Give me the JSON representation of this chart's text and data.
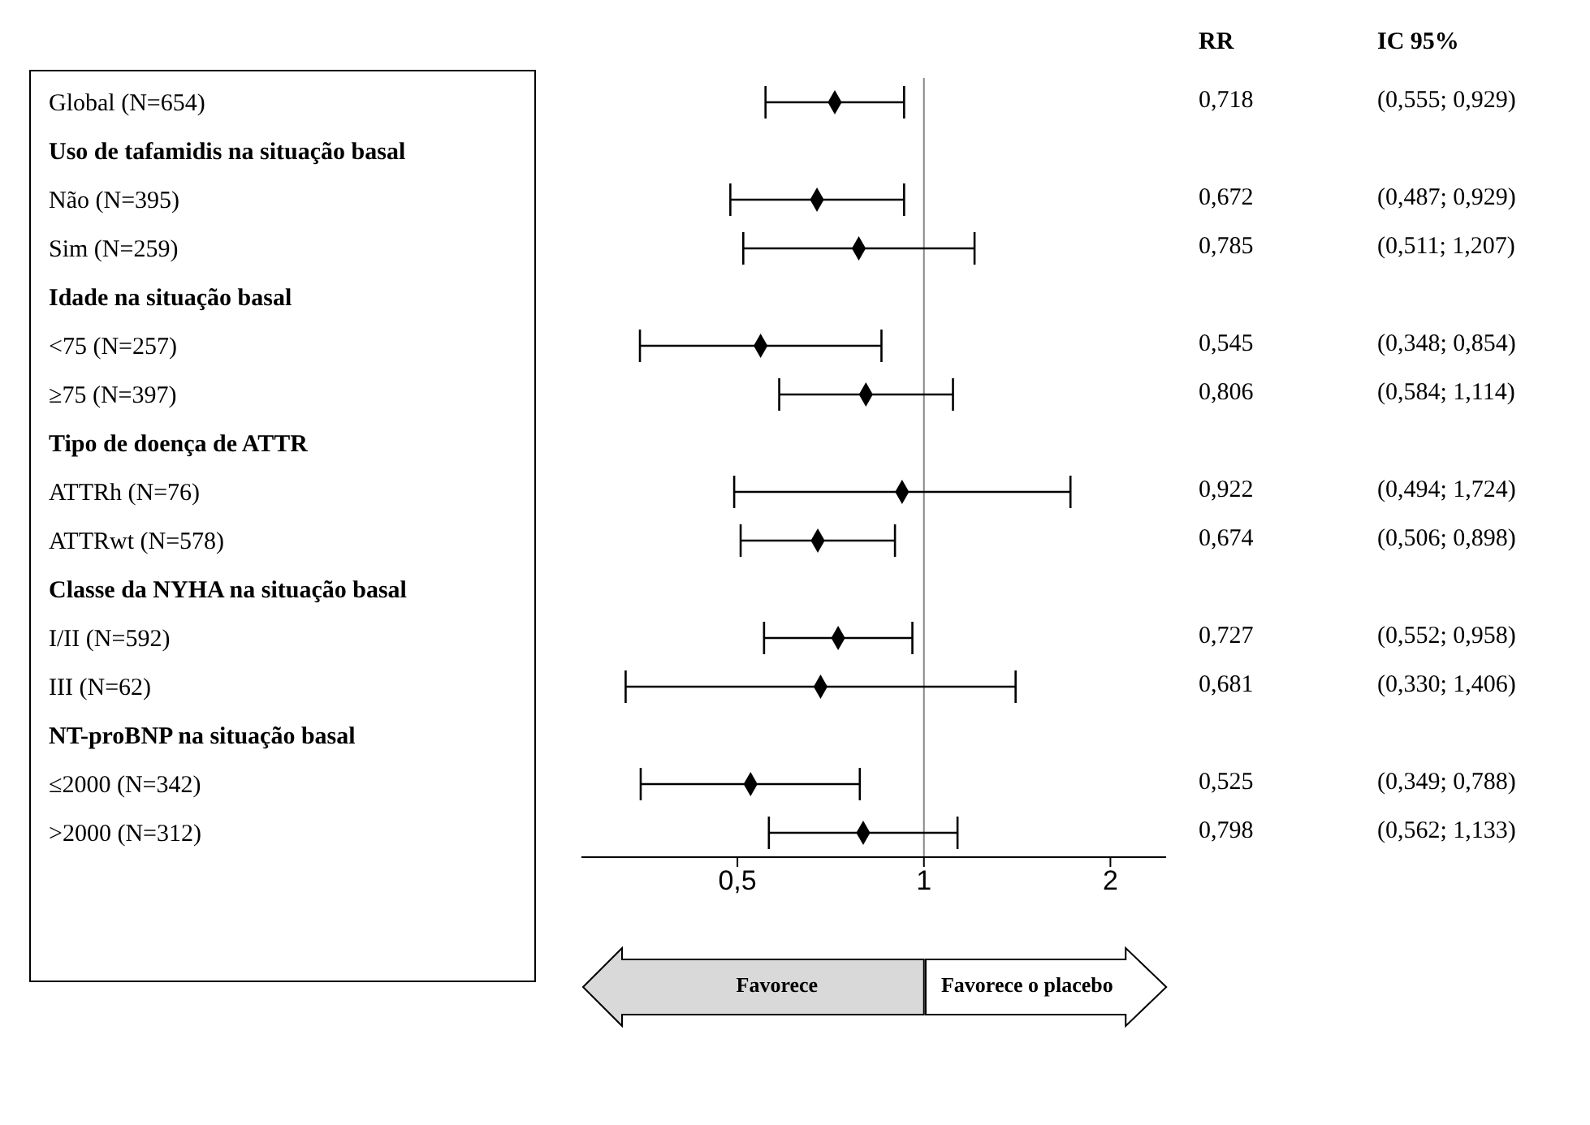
{
  "chart_data": {
    "type": "scatter",
    "orientation": "horizontal",
    "log": "x",
    "marker": "diamond",
    "color": "#000000",
    "categories": [
      "Global (N=654)",
      "Uso de tafamidis na situação basal",
      "Não (N=395)",
      "Sim (N=259)",
      "Idade na situação basal",
      "<75 (N=257)",
      "≥75 (N=397)",
      "Tipo de doença de ATTR",
      "ATTRh (N=76)",
      "ATTRwt (N=578)",
      "Classe da NYHA na situação basal",
      "I/II (N=592)",
      "III (N=62)",
      "NT-proBNP na situação basal",
      "≤2000 (N=342)",
      ">2000 (N=312)"
    ],
    "values": [
      0.718,
      null,
      0.672,
      0.785,
      null,
      0.545,
      0.806,
      null,
      0.922,
      0.674,
      null,
      0.727,
      0.681,
      null,
      0.525,
      0.798
    ],
    "errors": [
      [
        0.555,
        0.929
      ],
      null,
      [
        0.487,
        0.929
      ],
      [
        0.511,
        1.207
      ],
      null,
      [
        0.348,
        0.854
      ],
      [
        0.584,
        1.114
      ],
      null,
      [
        0.494,
        1.724
      ],
      [
        0.506,
        0.898
      ],
      null,
      [
        0.552,
        0.958
      ],
      [
        0.33,
        1.406
      ],
      null,
      [
        0.349,
        0.788
      ],
      [
        0.562,
        1.133
      ]
    ],
    "value_labels": [
      "0,718",
      null,
      "0,672",
      "0,785",
      null,
      "0,545",
      "0,806",
      null,
      "0,922",
      "0,674",
      null,
      "0,727",
      "0,681",
      null,
      "0,525",
      "0,798"
    ],
    "xlim": [
      0.28,
      2.46
    ],
    "xticks": [
      {
        "value": 0.5,
        "label": "0,5"
      },
      {
        "value": 1,
        "label": "1"
      },
      {
        "value": 2,
        "label": "2"
      }
    ],
    "ref_lines": [
      {
        "axis": "x",
        "value": 1,
        "color": "#888888"
      }
    ],
    "annotations": [
      "RR",
      "IC 95%",
      "Favorece",
      "Favorece o placebo",
      "(0,555; 0,929)",
      "(0,487; 0,929)",
      "(0,511; 1,207)",
      "(0,348; 0,854)",
      "(0,584; 1,114)",
      "(0,494; 1,724)",
      "(0,506; 0,898)",
      "(0,552; 0,958)",
      "(0,330; 1,406)",
      "(0,349; 0,788)",
      "(0,562; 1,133)"
    ]
  }
}
